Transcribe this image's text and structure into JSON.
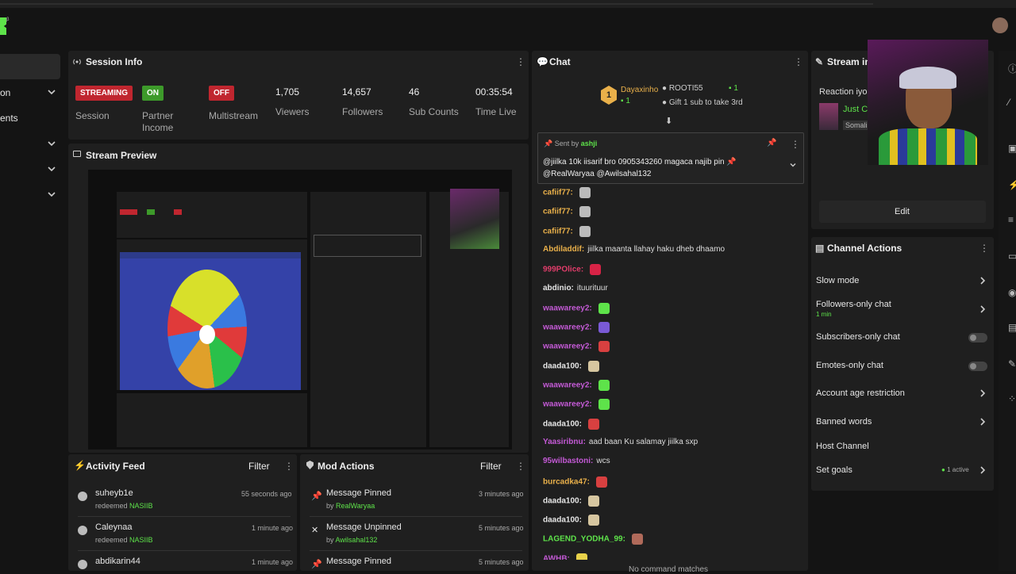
{
  "left_nav": {
    "items": [
      {
        "label": "on"
      },
      {
        "label": "ents"
      }
    ]
  },
  "session_info": {
    "title": "Session Info",
    "badges": [
      {
        "badge": "STREAMING",
        "label": "Session",
        "color": "#c0262f"
      },
      {
        "badge": "ON",
        "label": "Partner Income",
        "color": "#3d9a2a"
      },
      {
        "badge": "OFF",
        "label": "Multistream",
        "color": "#c0262f"
      }
    ],
    "stats": [
      {
        "value": "1,705",
        "label": "Viewers"
      },
      {
        "value": "14,657",
        "label": "Followers"
      },
      {
        "value": "46",
        "label": "Sub Counts"
      },
      {
        "value": "00:35:54",
        "label": "Time Live"
      }
    ]
  },
  "stream_preview": {
    "title": "Stream Preview"
  },
  "chat": {
    "title": "Chat",
    "gift": {
      "rank": "1",
      "user1": "Dayaxinho",
      "user1_count": "1",
      "user2": "ROOTI55",
      "user2_count": "1",
      "gift_text": "Gift 1 sub to take 3rd"
    },
    "pinned": {
      "sent_by_prefix": "Sent by",
      "sent_by_user": "ashji",
      "text": "@jiilka 10k iisarif bro 0905343260 magaca najib pin 📌 @RealWaryaa @Awilsahal132"
    },
    "messages": [
      {
        "user": "cafiif77:",
        "text": "",
        "color": "#e9b04a",
        "emote": "#bbbbbb"
      },
      {
        "user": "cafiif77:",
        "text": "",
        "color": "#e9b04a",
        "emote": "#bbbbbb"
      },
      {
        "user": "cafiif77:",
        "text": "",
        "color": "#e9b04a",
        "emote": "#bbbbbb"
      },
      {
        "user": "Abdiladdif:",
        "text": "jiilka maanta llahay haku dheb dhaamo",
        "color": "#e9b04a",
        "emote": ""
      },
      {
        "user": "999POlice:",
        "text": "",
        "color": "#e23d6b",
        "emote": "#d82346"
      },
      {
        "user": "abdinio:",
        "text": "ituurituur",
        "color": "#e6e6e6",
        "emote": ""
      },
      {
        "user": "waawareey2:",
        "text": "",
        "color": "#c45ad6",
        "emote": "#5ee34a"
      },
      {
        "user": "waawareey2:",
        "text": "",
        "color": "#c45ad6",
        "emote": "#7a5ad6"
      },
      {
        "user": "waawareey2:",
        "text": "",
        "color": "#c45ad6",
        "emote": "#d84040"
      },
      {
        "user": "daada100:",
        "text": "",
        "color": "#e6e6e6",
        "emote": "#d6c6a0"
      },
      {
        "user": "waawareey2:",
        "text": "",
        "color": "#c45ad6",
        "emote": "#5ee34a"
      },
      {
        "user": "waawareey2:",
        "text": "",
        "color": "#c45ad6",
        "emote": "#5ee34a"
      },
      {
        "user": "daada100:",
        "text": "",
        "color": "#e6e6e6",
        "emote": "#d84040"
      },
      {
        "user": "Yaasiribnu:",
        "text": "aad baan Ku salamay jiilka sxp",
        "color": "#c45ad6",
        "emote": ""
      },
      {
        "user": "95wilbastoni:",
        "text": "wcs",
        "color": "#c45ad6",
        "emote": ""
      },
      {
        "user": "burcadka47:",
        "text": "",
        "color": "#e9b04a",
        "emote": "#d84040"
      },
      {
        "user": "daada100:",
        "text": "",
        "color": "#e6e6e6",
        "emote": "#d6c6a0"
      },
      {
        "user": "daada100:",
        "text": "",
        "color": "#e6e6e6",
        "emote": "#d6c6a0"
      },
      {
        "user": "LAGEND_YODHA_99:",
        "text": "",
        "color": "#5ee34a",
        "emote": "#b06a5a"
      },
      {
        "user": "AWHB:",
        "text": "",
        "color": "#c45ad6",
        "emote": "#e9d24a"
      }
    ],
    "bottom_hint": "No command matches"
  },
  "stream_info": {
    "title": "Stream info",
    "reaction_label": "Reaction iyo",
    "title_snippet": "Just C",
    "category_snippet": "Somali",
    "edit_label": "Edit"
  },
  "channel_actions": {
    "title": "Channel Actions",
    "items": [
      {
        "label": "Slow mode",
        "sub": "",
        "control": "chevron"
      },
      {
        "label": "Followers-only chat",
        "sub": "1 min",
        "control": "chevron"
      },
      {
        "label": "Subscribers-only chat",
        "sub": "",
        "control": "toggle"
      },
      {
        "label": "Emotes-only chat",
        "sub": "",
        "control": "toggle"
      },
      {
        "label": "Account age restriction",
        "sub": "",
        "control": "chevron"
      },
      {
        "label": "Banned words",
        "sub": "",
        "control": "chevron"
      },
      {
        "label": "Host Channel",
        "sub": "",
        "control": "none"
      },
      {
        "label": "Set goals",
        "sub": "",
        "control": "chevron",
        "status": "1 active"
      }
    ]
  },
  "activity_feed": {
    "title": "Activity Feed",
    "filter_label": "Filter",
    "items": [
      {
        "name": "suheyb1e",
        "action": "redeemed",
        "reward": "NASIIB",
        "time": "55 seconds ago"
      },
      {
        "name": "Caleynaa",
        "action": "redeemed",
        "reward": "NASIIB",
        "time": "1 minute ago"
      },
      {
        "name": "abdikarin44",
        "action": "",
        "reward": "",
        "time": "1 minute ago"
      }
    ]
  },
  "mod_actions": {
    "title": "Mod Actions",
    "filter_label": "Filter",
    "items": [
      {
        "action": "Message Pinned",
        "by_prefix": "by",
        "by": "RealWaryaa",
        "time": "3 minutes ago"
      },
      {
        "action": "Message Unpinned",
        "by_prefix": "by",
        "by": "Awilsahal132",
        "time": "5 minutes ago"
      },
      {
        "action": "Message Pinned",
        "by_prefix": "",
        "by": "",
        "time": "5 minutes ago"
      }
    ]
  }
}
